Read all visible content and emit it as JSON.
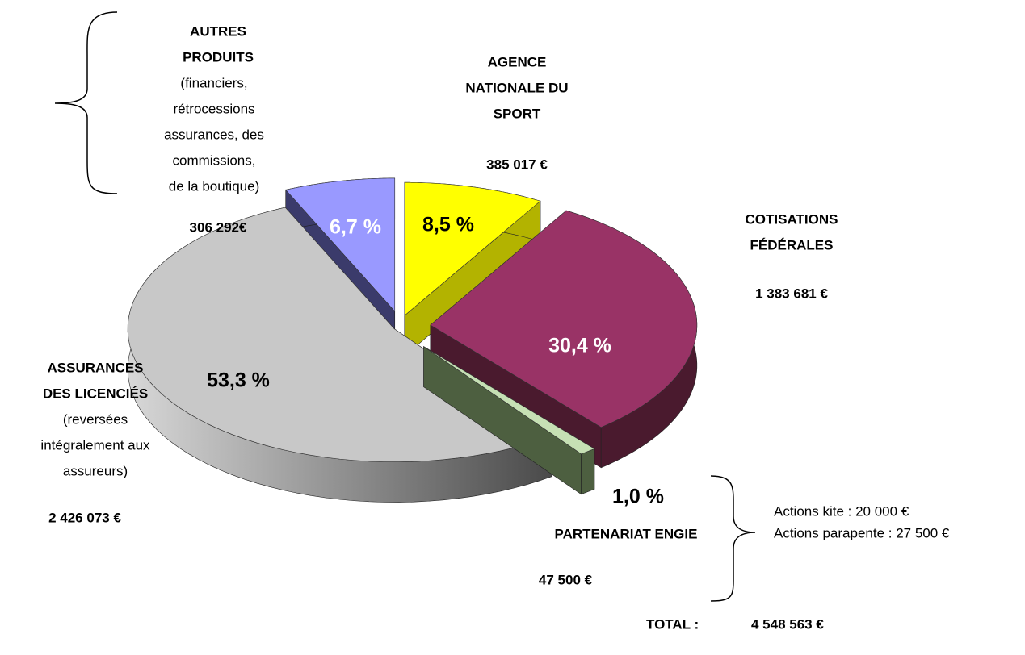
{
  "chart_data": {
    "type": "pie",
    "values": [
      8.5,
      30.4,
      1.0,
      53.3,
      6.7
    ],
    "value_labels": [
      "8,5 %",
      "30,4 %",
      "1,0 %",
      "53,3 %",
      "6,7 %"
    ],
    "colors": [
      "#ffff00",
      "#993366",
      "#c6e0b4",
      "#c8c8c8",
      "#9999ff"
    ],
    "side_colors": [
      "#b3b300",
      "#4a1a2e",
      "#4d5f40",
      "#8a8a8a",
      "#3b3b6b"
    ],
    "label_colors": [
      "#000000",
      "#ffffff",
      "#000000",
      "#000000",
      "#ffffff"
    ],
    "labels": [
      {
        "title": [
          "AGENCE",
          "NATIONALE DU",
          "SPORT"
        ],
        "detail": [],
        "amount": "385 017 €"
      },
      {
        "title": [
          "COTISATIONS",
          "FÉDÉRALES"
        ],
        "detail": [],
        "amount": "1 383 681 €"
      },
      {
        "title": [
          "PARTENARIAT ENGIE"
        ],
        "detail": [],
        "amount": "47 500 €"
      },
      {
        "title": [
          "ASSURANCES",
          "DES LICENCIÉS"
        ],
        "detail": [
          "(reversées",
          "intégralement aux",
          "assureurs)"
        ],
        "amount": "2 426 073 €"
      },
      {
        "title": [
          "AUTRES",
          "PRODUITS"
        ],
        "detail": [
          "(financiers,",
          "rétrocessions",
          "assurances, des",
          "commissions,",
          "de la boutique)"
        ],
        "amount": "306 292€"
      }
    ],
    "notes": [
      "Actions kite : 20 000 €",
      "Actions parapente : 27 500 €"
    ],
    "total_label": "TOTAL :",
    "total": "4 548 563 €"
  }
}
